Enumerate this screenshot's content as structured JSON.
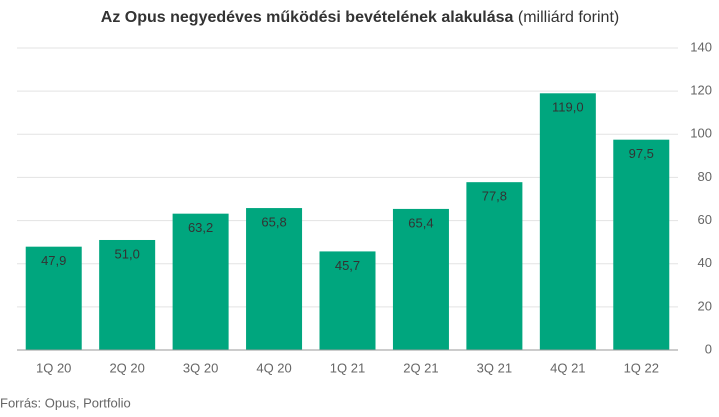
{
  "chart_data": {
    "type": "bar",
    "title": "Az Opus negyedéves működési bevételének alakulása",
    "subtitle": "(milliárd forint)",
    "source": "Forrás: Opus, Portfolio",
    "categories": [
      "1Q 20",
      "2Q 20",
      "3Q 20",
      "4Q 20",
      "1Q 21",
      "2Q 21",
      "3Q 21",
      "4Q 21",
      "1Q 22"
    ],
    "values": [
      47.9,
      51.0,
      63.2,
      65.8,
      45.7,
      65.4,
      77.8,
      119.0,
      97.5
    ],
    "value_labels": [
      "47,9",
      "51,0",
      "63,2",
      "65,8",
      "45,7",
      "65,4",
      "77,8",
      "119,0",
      "97,5"
    ],
    "color": "#00a67e",
    "ylim": [
      0,
      140
    ],
    "yticks": [
      0,
      20,
      40,
      60,
      80,
      100,
      120,
      140
    ],
    "grid": true
  }
}
